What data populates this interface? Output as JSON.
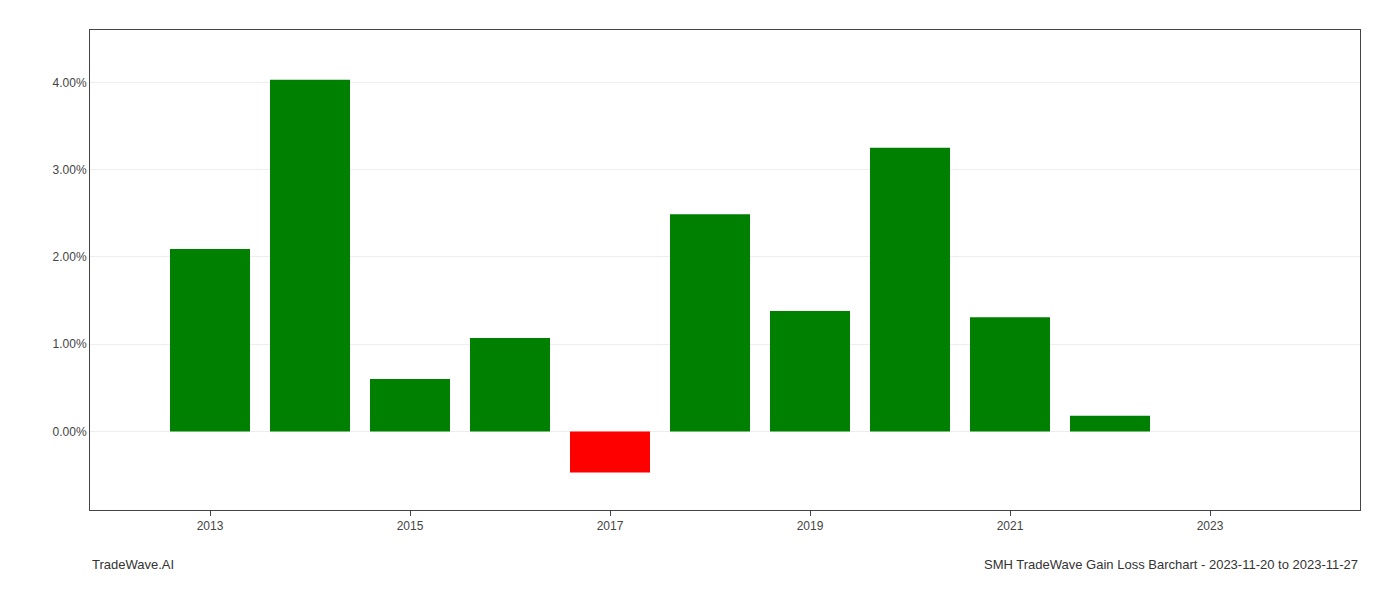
{
  "chart_data": {
    "type": "bar",
    "x": [
      2013,
      2014,
      2015,
      2016,
      2017,
      2018,
      2019,
      2020,
      2021,
      2022
    ],
    "values": [
      0.0209,
      0.0403,
      0.006,
      0.0107,
      -0.0047,
      0.0249,
      0.0138,
      0.0325,
      0.0131,
      0.0018
    ],
    "colors": [
      "#008000",
      "#008000",
      "#008000",
      "#008000",
      "#ff0000",
      "#008000",
      "#008000",
      "#008000",
      "#008000",
      "#008000"
    ],
    "xlim": [
      2011.8,
      2024.5
    ],
    "xticks": [
      2013,
      2015,
      2017,
      2019,
      2021,
      2023
    ],
    "ylim": [
      -0.009,
      0.046
    ],
    "yticks": [
      {
        "value": 0.0,
        "label": "0.00%"
      },
      {
        "value": 0.01,
        "label": "1.00%"
      },
      {
        "value": 0.02,
        "label": "2.00%"
      },
      {
        "value": 0.03,
        "label": "3.00%"
      },
      {
        "value": 0.04,
        "label": "4.00%"
      }
    ],
    "grid": true,
    "annotations": [
      "TradeWave.AI",
      "SMH TradeWave Gain Loss Barchart - 2023-11-20 to 2023-11-27"
    ]
  }
}
